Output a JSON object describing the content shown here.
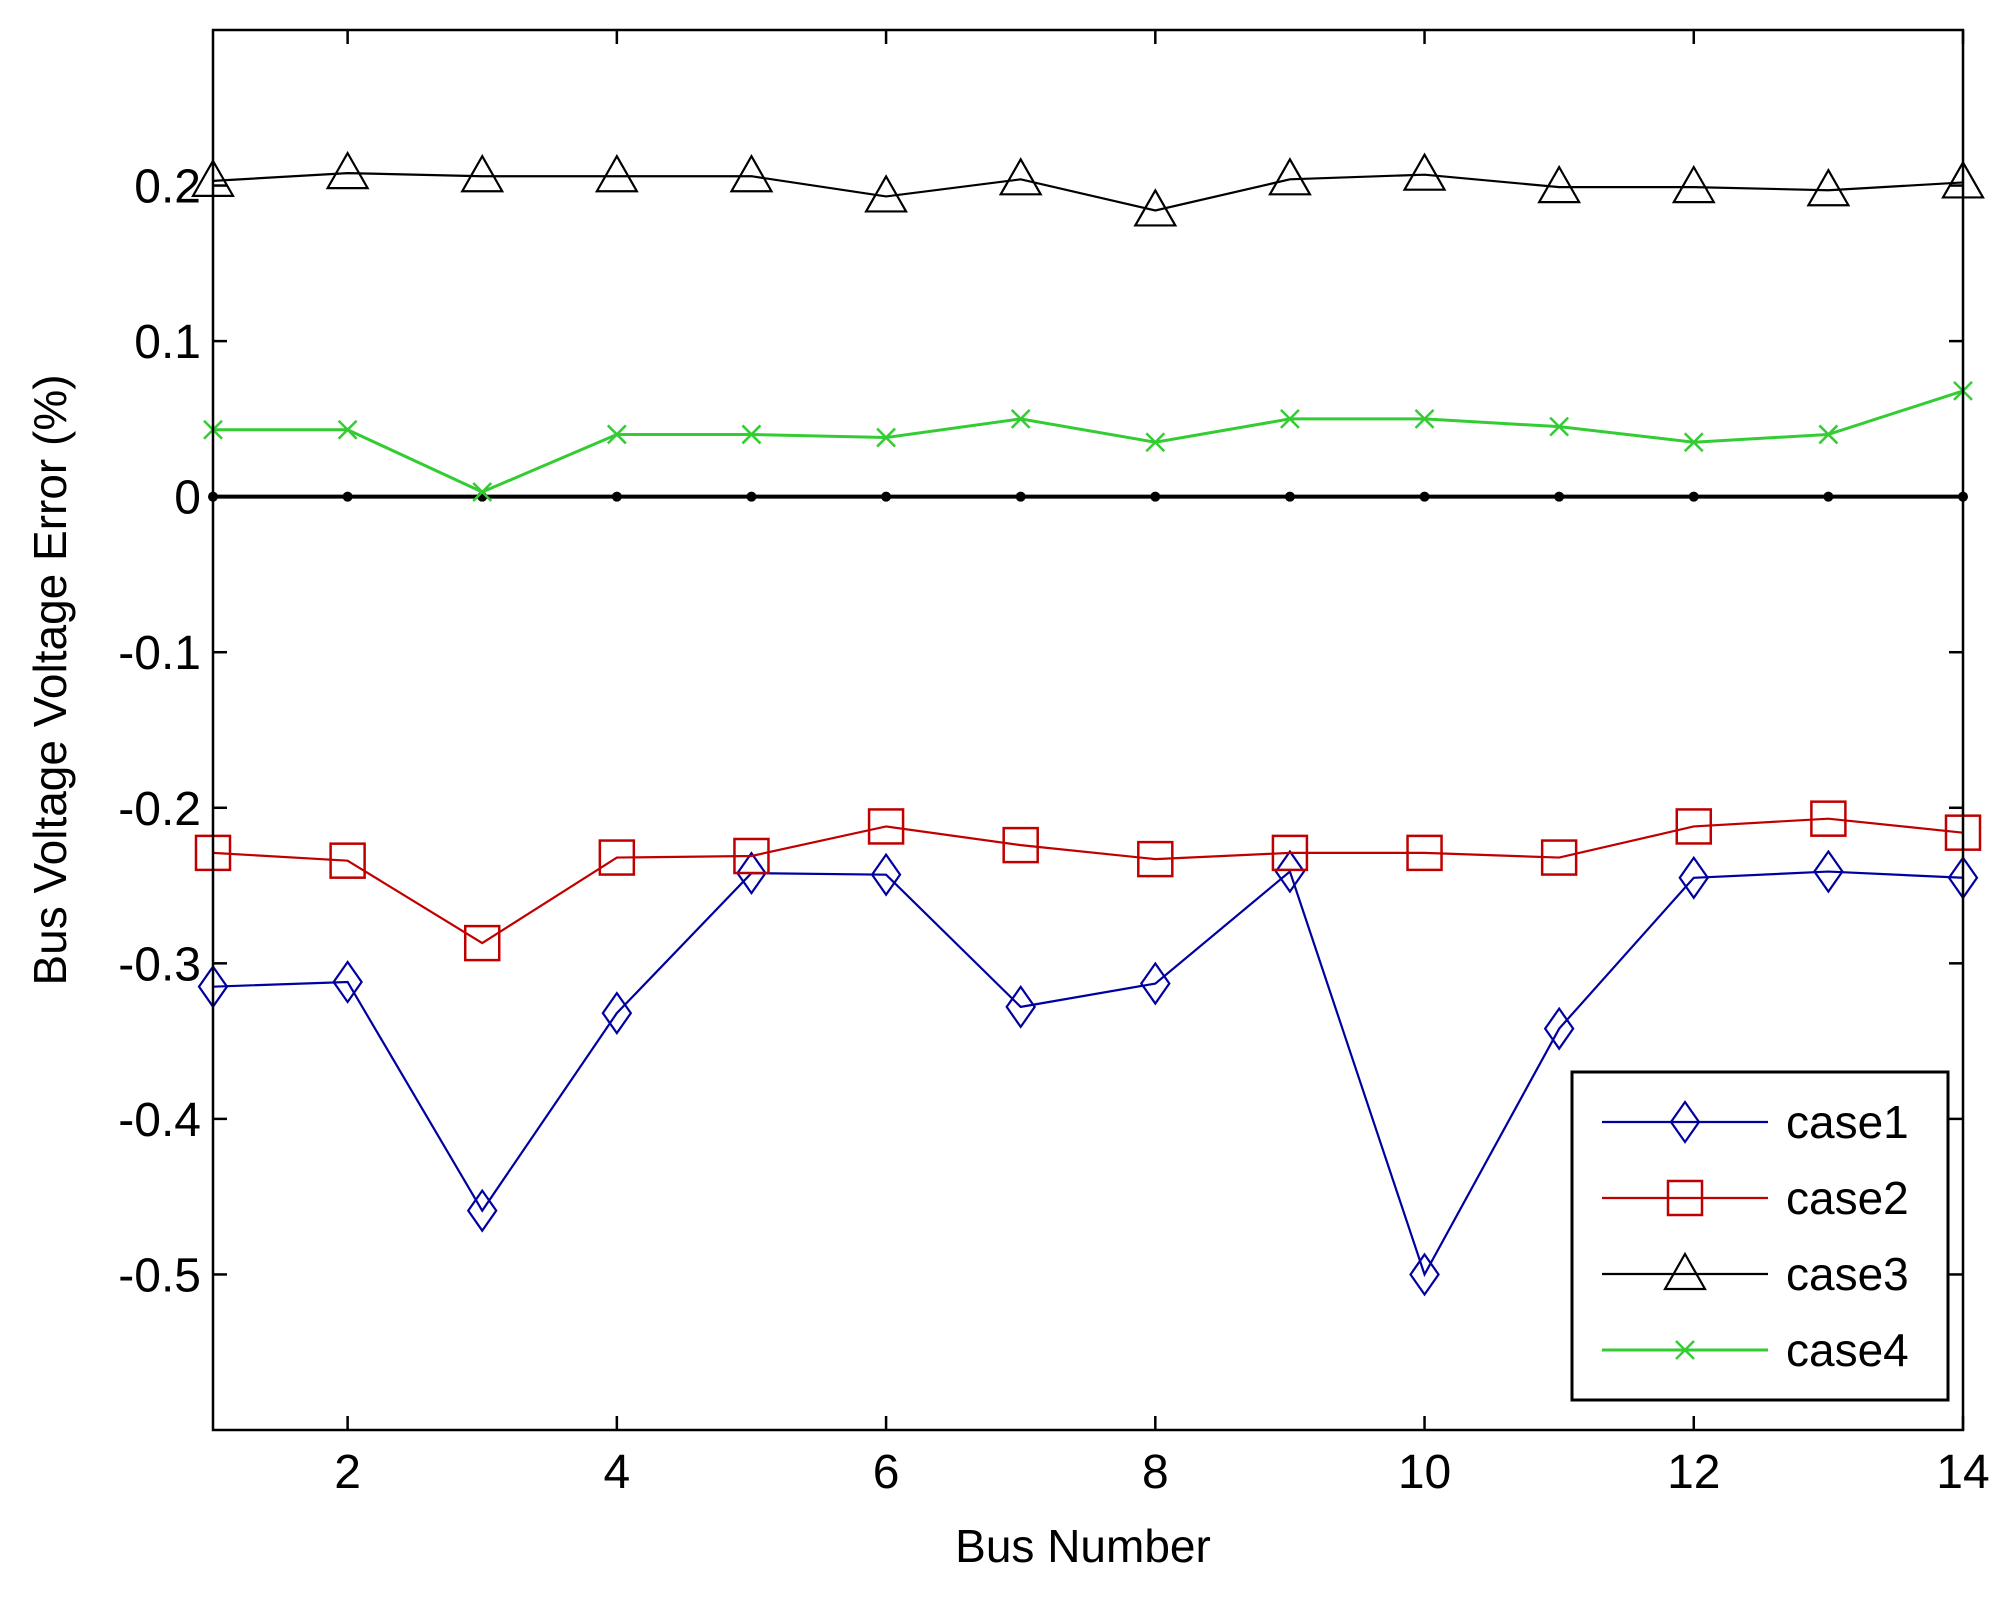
{
  "chart_data": {
    "type": "line",
    "xlabel": "Bus Number",
    "ylabel": "Bus Voltage Voltage Error  (%)",
    "xlim": [
      1,
      14
    ],
    "ylim": [
      -0.6,
      0.3
    ],
    "xticks": [
      2,
      4,
      6,
      8,
      10,
      12,
      14
    ],
    "yticks": [
      -0.5,
      -0.4,
      -0.3,
      -0.2,
      -0.1,
      0,
      0.1,
      0.2
    ],
    "xtick_labels": [
      "2",
      "4",
      "6",
      "8",
      "10",
      "12",
      "14"
    ],
    "ytick_labels": [
      "-0.5",
      "-0.4",
      "-0.3",
      "-0.2",
      "-0.1",
      "0",
      "0.1",
      "0.2"
    ],
    "grid": false,
    "legend_position": "bottom-right",
    "x": [
      1,
      2,
      3,
      4,
      5,
      6,
      7,
      8,
      9,
      10,
      11,
      12,
      13,
      14
    ],
    "series": [
      {
        "name": "case1",
        "color": "#0000a0",
        "marker": "diamond",
        "values": [
          -0.315,
          -0.312,
          -0.459,
          -0.332,
          -0.242,
          -0.243,
          -0.328,
          -0.313,
          -0.241,
          -0.5,
          -0.342,
          -0.245,
          -0.241,
          -0.245
        ]
      },
      {
        "name": "case2",
        "color": "#c00000",
        "marker": "square",
        "values": [
          -0.229,
          -0.234,
          -0.287,
          -0.232,
          -0.231,
          -0.212,
          -0.224,
          -0.233,
          -0.229,
          -0.229,
          -0.232,
          -0.212,
          -0.207,
          -0.216
        ]
      },
      {
        "name": "case3",
        "color": "#000000",
        "marker": "triangle",
        "values": [
          0.203,
          0.208,
          0.206,
          0.206,
          0.206,
          0.193,
          0.204,
          0.184,
          0.204,
          0.207,
          0.199,
          0.199,
          0.197,
          0.202
        ]
      },
      {
        "name": "case4",
        "color": "#33cc33",
        "marker": "x",
        "values": [
          0.043,
          0.043,
          0.003,
          0.04,
          0.04,
          0.038,
          0.05,
          0.035,
          0.05,
          0.05,
          0.045,
          0.035,
          0.04,
          0.068
        ]
      }
    ],
    "reference_line": {
      "y": 0,
      "color": "#000000",
      "marker": "dot"
    }
  }
}
